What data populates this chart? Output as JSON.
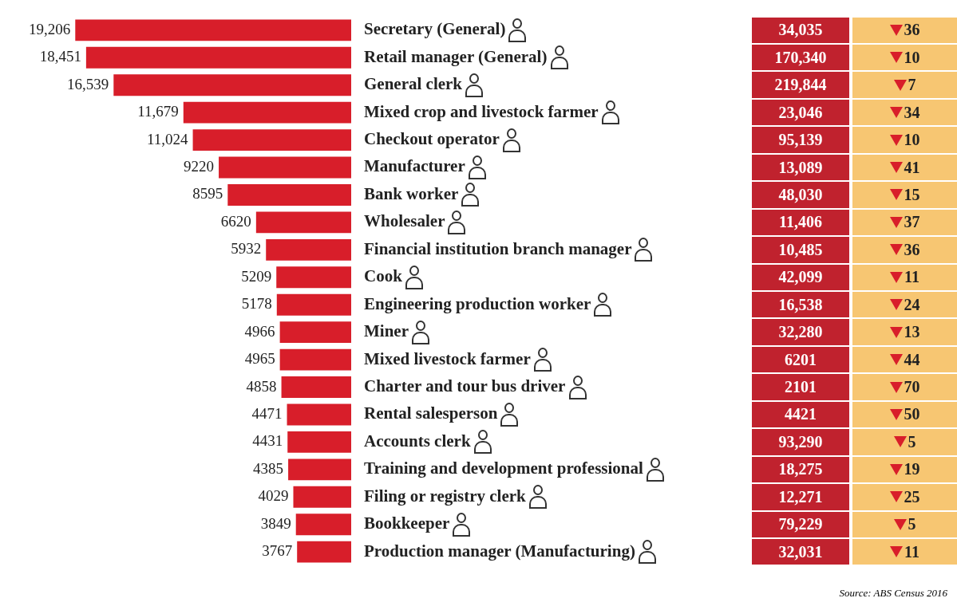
{
  "chart_data": [
    {
      "type": "bar",
      "orientation": "horizontal",
      "categories": [
        "Secretary (General)",
        "Retail manager (General)",
        "General clerk",
        "Mixed crop and livestock farmer",
        "Checkout operator",
        "Manufacturer",
        "Bank worker",
        "Wholesaler",
        "Financial institution branch manager",
        "Cook",
        "Engineering production worker",
        "Miner",
        "Mixed livestock farmer",
        "Charter and tour bus driver",
        "Rental salesperson",
        "Accounts clerk",
        "Training and development professional",
        "Filing or registry clerk",
        "Bookkeeper",
        "Production manager (Manufacturing)"
      ],
      "values": [
        19206,
        18451,
        16539,
        11679,
        11024,
        9220,
        8595,
        6620,
        5932,
        5209,
        5178,
        4966,
        4965,
        4858,
        4471,
        4431,
        4385,
        4029,
        3849,
        3767
      ],
      "value_labels": [
        "19,206",
        "18,451",
        "16,539",
        "11,679",
        "11,024",
        "9220",
        "8595",
        "6620",
        "5932",
        "5209",
        "5178",
        "4966",
        "4965",
        "4858",
        "4471",
        "4431",
        "4385",
        "4029",
        "3849",
        "3767"
      ],
      "color": "#d81e2a",
      "tick_labels": "y",
      "legend": false
    },
    {
      "type": "other",
      "values": [
        34035,
        170340,
        219844,
        23046,
        95139,
        13089,
        48030,
        11406,
        10485,
        42099,
        16538,
        32280,
        6201,
        2101,
        4421,
        93290,
        18275,
        12271,
        79229,
        32031
      ],
      "value_labels": [
        "34,035",
        "170,340",
        "219,844",
        "23,046",
        "95,139",
        "13,089",
        "48,030",
        "11,406",
        "10,485",
        "42,099",
        "16,538",
        "32,280",
        "6201",
        "2101",
        "4421",
        "93,290",
        "18,275",
        "12,271",
        "79,229",
        "32,031"
      ],
      "color": "#c0222e"
    },
    {
      "type": "other",
      "values": [
        36,
        10,
        7,
        34,
        10,
        41,
        15,
        37,
        36,
        11,
        24,
        13,
        44,
        70,
        50,
        5,
        19,
        25,
        5,
        11
      ],
      "value_labels": [
        "36",
        "10",
        "7",
        "34",
        "10",
        "41",
        "15",
        "37",
        "36",
        "11",
        "24",
        "13",
        "44",
        "70",
        "50",
        "5",
        "19",
        "25",
        "5",
        "11"
      ],
      "color": "#f7c672",
      "annotations": [
        "Source: ABS Census 2016"
      ]
    }
  ]
}
